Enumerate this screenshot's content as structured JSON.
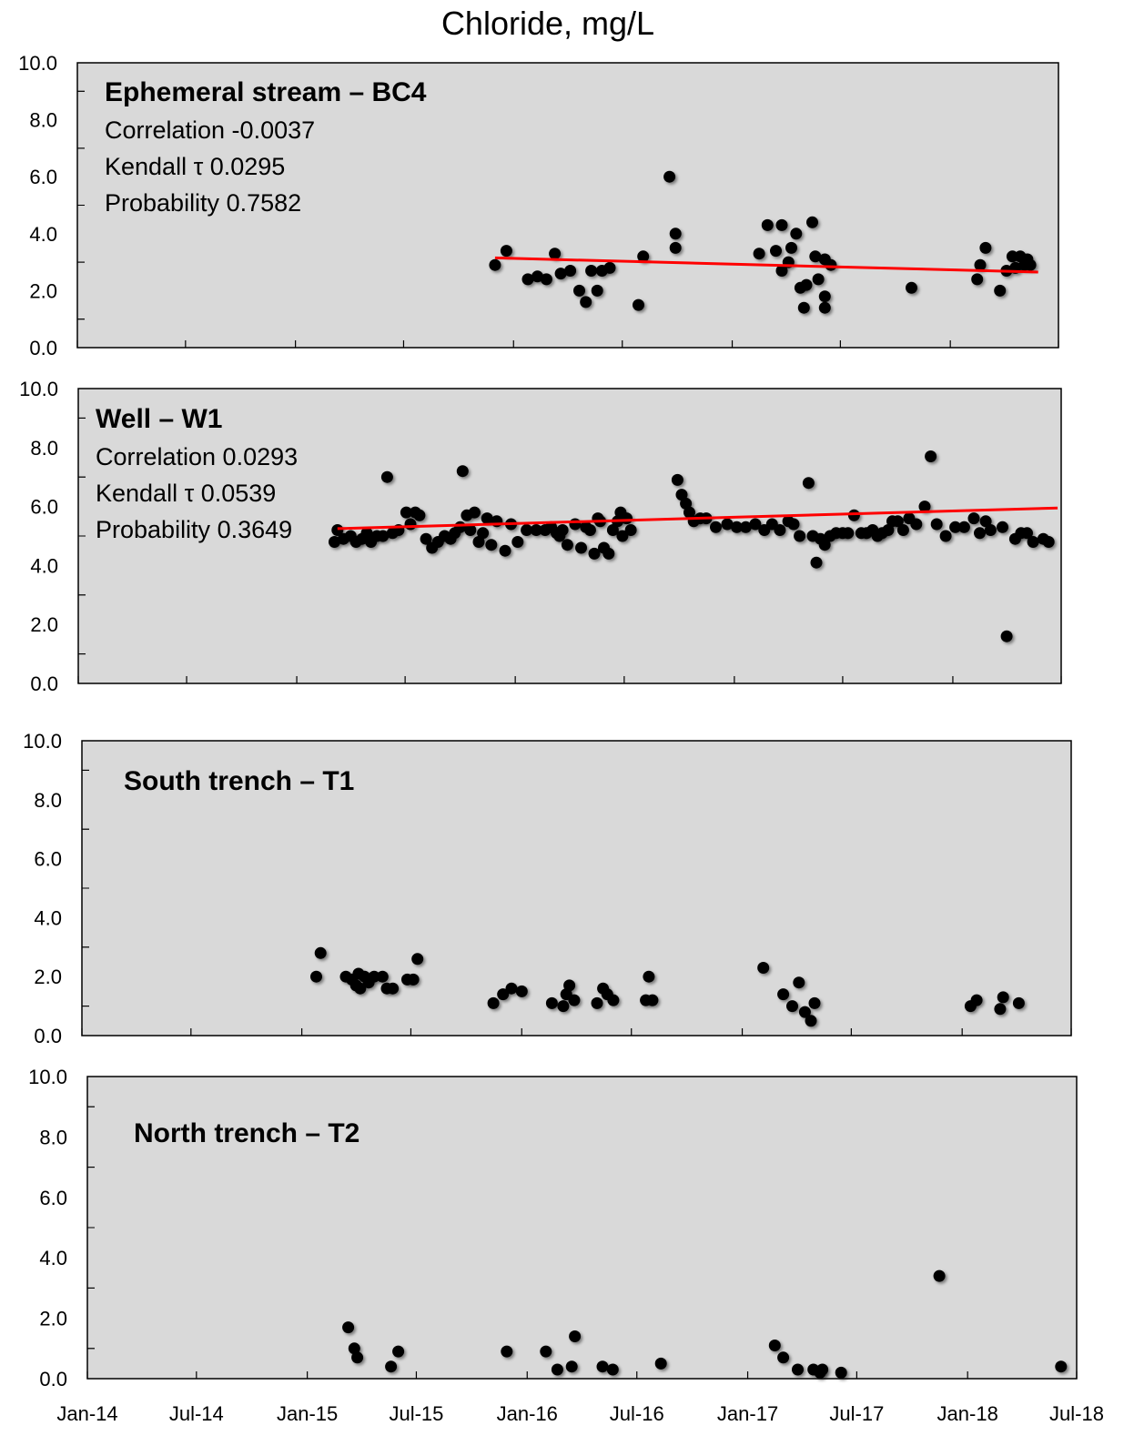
{
  "chart_data": {
    "type": "scatter",
    "title": "Chloride, mg/L",
    "x_axis": {
      "type": "date",
      "range": [
        "2014-01-01",
        "2018-07-01"
      ],
      "tick_labels": [
        "Jan-14",
        "Jul-14",
        "Jan-15",
        "Jul-15",
        "Jan-16",
        "Jul-16",
        "Jan-17",
        "Jul-17",
        "Jan-18",
        "Jul-18"
      ]
    },
    "y_axis": {
      "range": [
        0,
        10
      ],
      "tick_labels": [
        "0.0",
        "2.0",
        "4.0",
        "6.0",
        "8.0",
        "10.0"
      ]
    },
    "grid": false,
    "colors": {
      "background": "#d9d9d9",
      "marker": "#000000",
      "trendline": "#ff0000"
    },
    "panels": [
      {
        "title": "Ephemeral stream – BC4",
        "stats": [
          "Correlation -0.0037",
          "Kendall τ 0.0295",
          "Probability 0.7582"
        ],
        "trend": [
          [
            "2015-12-01",
            3.15
          ],
          [
            "2018-05-28",
            2.65
          ]
        ],
        "points": [
          [
            "2015-12-01",
            2.9
          ],
          [
            "2015-12-20",
            3.4
          ],
          [
            "2016-01-25",
            2.4
          ],
          [
            "2016-02-10",
            2.5
          ],
          [
            "2016-02-25",
            2.4
          ],
          [
            "2016-03-10",
            3.3
          ],
          [
            "2016-03-20",
            2.6
          ],
          [
            "2016-04-05",
            2.7
          ],
          [
            "2016-04-20",
            2.0
          ],
          [
            "2016-05-01",
            1.6
          ],
          [
            "2016-05-10",
            2.7
          ],
          [
            "2016-05-20",
            2.0
          ],
          [
            "2016-05-28",
            2.7
          ],
          [
            "2016-06-10",
            2.8
          ],
          [
            "2016-07-28",
            1.5
          ],
          [
            "2016-08-05",
            3.2
          ],
          [
            "2016-09-18",
            6.0
          ],
          [
            "2016-09-28",
            3.5
          ],
          [
            "2016-09-28",
            4.0
          ],
          [
            "2017-02-15",
            3.3
          ],
          [
            "2017-03-01",
            4.3
          ],
          [
            "2017-03-15",
            3.4
          ],
          [
            "2017-03-25",
            4.3
          ],
          [
            "2017-03-25",
            2.7
          ],
          [
            "2017-04-05",
            3.0
          ],
          [
            "2017-04-10",
            3.5
          ],
          [
            "2017-04-18",
            4.0
          ],
          [
            "2017-04-25",
            2.1
          ],
          [
            "2017-05-01",
            1.4
          ],
          [
            "2017-05-05",
            2.2
          ],
          [
            "2017-05-15",
            4.4
          ],
          [
            "2017-05-20",
            3.2
          ],
          [
            "2017-05-25",
            2.4
          ],
          [
            "2017-06-05",
            3.1
          ],
          [
            "2017-06-05",
            1.8
          ],
          [
            "2017-06-05",
            1.4
          ],
          [
            "2017-06-15",
            2.9
          ],
          [
            "2017-10-28",
            2.1
          ],
          [
            "2018-02-15",
            2.4
          ],
          [
            "2018-02-20",
            2.9
          ],
          [
            "2018-03-01",
            3.5
          ],
          [
            "2018-03-25",
            2.0
          ],
          [
            "2018-04-05",
            2.7
          ],
          [
            "2018-04-15",
            3.2
          ],
          [
            "2018-04-20",
            2.8
          ],
          [
            "2018-04-28",
            3.2
          ],
          [
            "2018-05-05",
            2.9
          ],
          [
            "2018-05-10",
            3.1
          ],
          [
            "2018-05-15",
            2.9
          ]
        ]
      },
      {
        "title": "Well – W1",
        "stats": [
          "Correlation 0.0293",
          "Kendall τ 0.0539",
          "Probability 0.3649"
        ],
        "trend": [
          [
            "2015-03-10",
            5.25
          ],
          [
            "2018-06-25",
            5.95
          ]
        ],
        "points": [
          [
            "2015-03-05",
            4.8
          ],
          [
            "2015-03-10",
            5.2
          ],
          [
            "2015-03-20",
            4.9
          ],
          [
            "2015-04-01",
            5.0
          ],
          [
            "2015-04-10",
            4.8
          ],
          [
            "2015-04-20",
            4.9
          ],
          [
            "2015-04-28",
            5.1
          ],
          [
            "2015-05-05",
            4.8
          ],
          [
            "2015-05-15",
            5.0
          ],
          [
            "2015-05-25",
            5.0
          ],
          [
            "2015-06-01",
            7.0
          ],
          [
            "2015-06-10",
            5.1
          ],
          [
            "2015-06-20",
            5.2
          ],
          [
            "2015-07-03",
            5.8
          ],
          [
            "2015-07-10",
            5.4
          ],
          [
            "2015-07-18",
            5.8
          ],
          [
            "2015-07-25",
            5.7
          ],
          [
            "2015-08-05",
            4.9
          ],
          [
            "2015-08-15",
            4.6
          ],
          [
            "2015-08-25",
            4.8
          ],
          [
            "2015-09-05",
            5.0
          ],
          [
            "2015-09-15",
            4.9
          ],
          [
            "2015-09-22",
            5.1
          ],
          [
            "2015-10-01",
            5.3
          ],
          [
            "2015-10-05",
            7.2
          ],
          [
            "2015-10-12",
            5.7
          ],
          [
            "2015-10-18",
            5.2
          ],
          [
            "2015-10-25",
            5.8
          ],
          [
            "2015-11-01",
            4.8
          ],
          [
            "2015-11-08",
            5.1
          ],
          [
            "2015-11-15",
            5.6
          ],
          [
            "2015-11-22",
            4.7
          ],
          [
            "2015-12-01",
            5.5
          ],
          [
            "2015-12-15",
            4.5
          ],
          [
            "2015-12-25",
            5.4
          ],
          [
            "2016-01-05",
            4.8
          ],
          [
            "2016-01-20",
            5.2
          ],
          [
            "2016-02-05",
            5.2
          ],
          [
            "2016-02-20",
            5.2
          ],
          [
            "2016-03-01",
            5.3
          ],
          [
            "2016-03-10",
            5.1
          ],
          [
            "2016-03-15",
            5.0
          ],
          [
            "2016-03-20",
            5.2
          ],
          [
            "2016-03-28",
            4.7
          ],
          [
            "2016-04-10",
            5.4
          ],
          [
            "2016-04-20",
            4.6
          ],
          [
            "2016-04-28",
            5.3
          ],
          [
            "2016-05-05",
            5.2
          ],
          [
            "2016-05-12",
            4.4
          ],
          [
            "2016-05-18",
            5.6
          ],
          [
            "2016-05-22",
            5.5
          ],
          [
            "2016-05-28",
            4.6
          ],
          [
            "2016-06-05",
            4.4
          ],
          [
            "2016-06-12",
            5.2
          ],
          [
            "2016-06-20",
            5.5
          ],
          [
            "2016-06-25",
            5.8
          ],
          [
            "2016-06-28",
            5.0
          ],
          [
            "2016-07-05",
            5.6
          ],
          [
            "2016-07-12",
            5.2
          ],
          [
            "2016-09-28",
            6.9
          ],
          [
            "2016-10-05",
            6.4
          ],
          [
            "2016-10-12",
            6.1
          ],
          [
            "2016-10-18",
            5.8
          ],
          [
            "2016-10-25",
            5.5
          ],
          [
            "2016-11-05",
            5.6
          ],
          [
            "2016-11-15",
            5.6
          ],
          [
            "2016-12-01",
            5.3
          ],
          [
            "2016-12-20",
            5.4
          ],
          [
            "2017-01-05",
            5.3
          ],
          [
            "2017-01-20",
            5.3
          ],
          [
            "2017-02-05",
            5.4
          ],
          [
            "2017-02-20",
            5.2
          ],
          [
            "2017-03-05",
            5.4
          ],
          [
            "2017-03-18",
            5.2
          ],
          [
            "2017-04-01",
            5.5
          ],
          [
            "2017-04-10",
            5.4
          ],
          [
            "2017-04-20",
            5.0
          ],
          [
            "2017-05-05",
            6.8
          ],
          [
            "2017-05-12",
            5.0
          ],
          [
            "2017-05-18",
            4.1
          ],
          [
            "2017-05-25",
            4.9
          ],
          [
            "2017-06-01",
            4.7
          ],
          [
            "2017-06-10",
            5.0
          ],
          [
            "2017-06-20",
            5.1
          ],
          [
            "2017-07-01",
            5.1
          ],
          [
            "2017-07-10",
            5.1
          ],
          [
            "2017-07-20",
            5.7
          ],
          [
            "2017-08-01",
            5.1
          ],
          [
            "2017-08-10",
            5.1
          ],
          [
            "2017-08-20",
            5.2
          ],
          [
            "2017-08-28",
            5.0
          ],
          [
            "2017-09-05",
            5.1
          ],
          [
            "2017-09-15",
            5.2
          ],
          [
            "2017-09-22",
            5.5
          ],
          [
            "2017-10-01",
            5.5
          ],
          [
            "2017-10-10",
            5.2
          ],
          [
            "2017-10-20",
            5.6
          ],
          [
            "2017-11-01",
            5.4
          ],
          [
            "2017-11-15",
            6.0
          ],
          [
            "2017-11-25",
            7.7
          ],
          [
            "2017-12-05",
            5.4
          ],
          [
            "2017-12-20",
            5.0
          ],
          [
            "2018-01-05",
            5.3
          ],
          [
            "2018-01-20",
            5.3
          ],
          [
            "2018-02-05",
            5.6
          ],
          [
            "2018-02-15",
            5.1
          ],
          [
            "2018-02-25",
            5.5
          ],
          [
            "2018-03-05",
            5.2
          ],
          [
            "2018-03-25",
            5.3
          ],
          [
            "2018-04-01",
            1.6
          ],
          [
            "2018-04-15",
            4.9
          ],
          [
            "2018-04-25",
            5.1
          ],
          [
            "2018-05-05",
            5.1
          ],
          [
            "2018-05-15",
            4.8
          ],
          [
            "2018-06-01",
            4.9
          ],
          [
            "2018-06-10",
            4.8
          ]
        ]
      },
      {
        "title": "South trench – T1",
        "stats": [],
        "trend": [],
        "points": [
          [
            "2015-01-25",
            2.0
          ],
          [
            "2015-02-01",
            2.8
          ],
          [
            "2015-03-15",
            2.0
          ],
          [
            "2015-03-25",
            1.9
          ],
          [
            "2015-04-01",
            1.7
          ],
          [
            "2015-04-05",
            2.1
          ],
          [
            "2015-04-08",
            1.6
          ],
          [
            "2015-04-15",
            2.0
          ],
          [
            "2015-04-22",
            1.8
          ],
          [
            "2015-05-01",
            2.0
          ],
          [
            "2015-05-15",
            2.0
          ],
          [
            "2015-05-22",
            1.6
          ],
          [
            "2015-06-01",
            1.6
          ],
          [
            "2015-06-25",
            1.9
          ],
          [
            "2015-07-05",
            1.9
          ],
          [
            "2015-07-12",
            2.6
          ],
          [
            "2015-11-15",
            1.1
          ],
          [
            "2015-12-01",
            1.4
          ],
          [
            "2015-12-15",
            1.6
          ],
          [
            "2016-01-01",
            1.5
          ],
          [
            "2016-02-20",
            1.1
          ],
          [
            "2016-03-10",
            1.0
          ],
          [
            "2016-03-15",
            1.4
          ],
          [
            "2016-03-20",
            1.7
          ],
          [
            "2016-03-28",
            1.2
          ],
          [
            "2016-05-05",
            1.1
          ],
          [
            "2016-05-15",
            1.6
          ],
          [
            "2016-05-22",
            1.4
          ],
          [
            "2016-06-01",
            1.2
          ],
          [
            "2016-07-25",
            1.2
          ],
          [
            "2016-07-30",
            2.0
          ],
          [
            "2016-08-05",
            1.2
          ],
          [
            "2017-02-05",
            2.3
          ],
          [
            "2017-03-10",
            1.4
          ],
          [
            "2017-03-25",
            1.0
          ],
          [
            "2017-04-05",
            1.8
          ],
          [
            "2017-04-15",
            0.8
          ],
          [
            "2017-04-25",
            0.5
          ],
          [
            "2017-05-01",
            1.1
          ],
          [
            "2018-01-15",
            1.0
          ],
          [
            "2018-01-25",
            1.2
          ],
          [
            "2018-03-05",
            0.9
          ],
          [
            "2018-03-10",
            1.3
          ],
          [
            "2018-04-05",
            1.1
          ]
        ]
      },
      {
        "title": "North trench – T2",
        "stats": [],
        "trend": [],
        "points": [
          [
            "2015-03-10",
            1.7
          ],
          [
            "2015-03-20",
            1.0
          ],
          [
            "2015-03-25",
            0.7
          ],
          [
            "2015-05-20",
            0.4
          ],
          [
            "2015-06-01",
            0.9
          ],
          [
            "2015-11-28",
            0.9
          ],
          [
            "2016-02-01",
            0.9
          ],
          [
            "2016-02-20",
            0.3
          ],
          [
            "2016-03-15",
            0.4
          ],
          [
            "2016-03-20",
            1.4
          ],
          [
            "2016-05-05",
            0.4
          ],
          [
            "2016-05-22",
            0.3
          ],
          [
            "2016-08-10",
            0.5
          ],
          [
            "2017-02-15",
            1.1
          ],
          [
            "2017-03-01",
            0.7
          ],
          [
            "2017-03-25",
            0.3
          ],
          [
            "2017-04-20",
            0.3
          ],
          [
            "2017-05-01",
            0.2
          ],
          [
            "2017-05-05",
            0.3
          ],
          [
            "2017-06-05",
            0.2
          ],
          [
            "2017-11-15",
            3.4
          ],
          [
            "2018-06-05",
            0.4
          ]
        ]
      }
    ]
  }
}
